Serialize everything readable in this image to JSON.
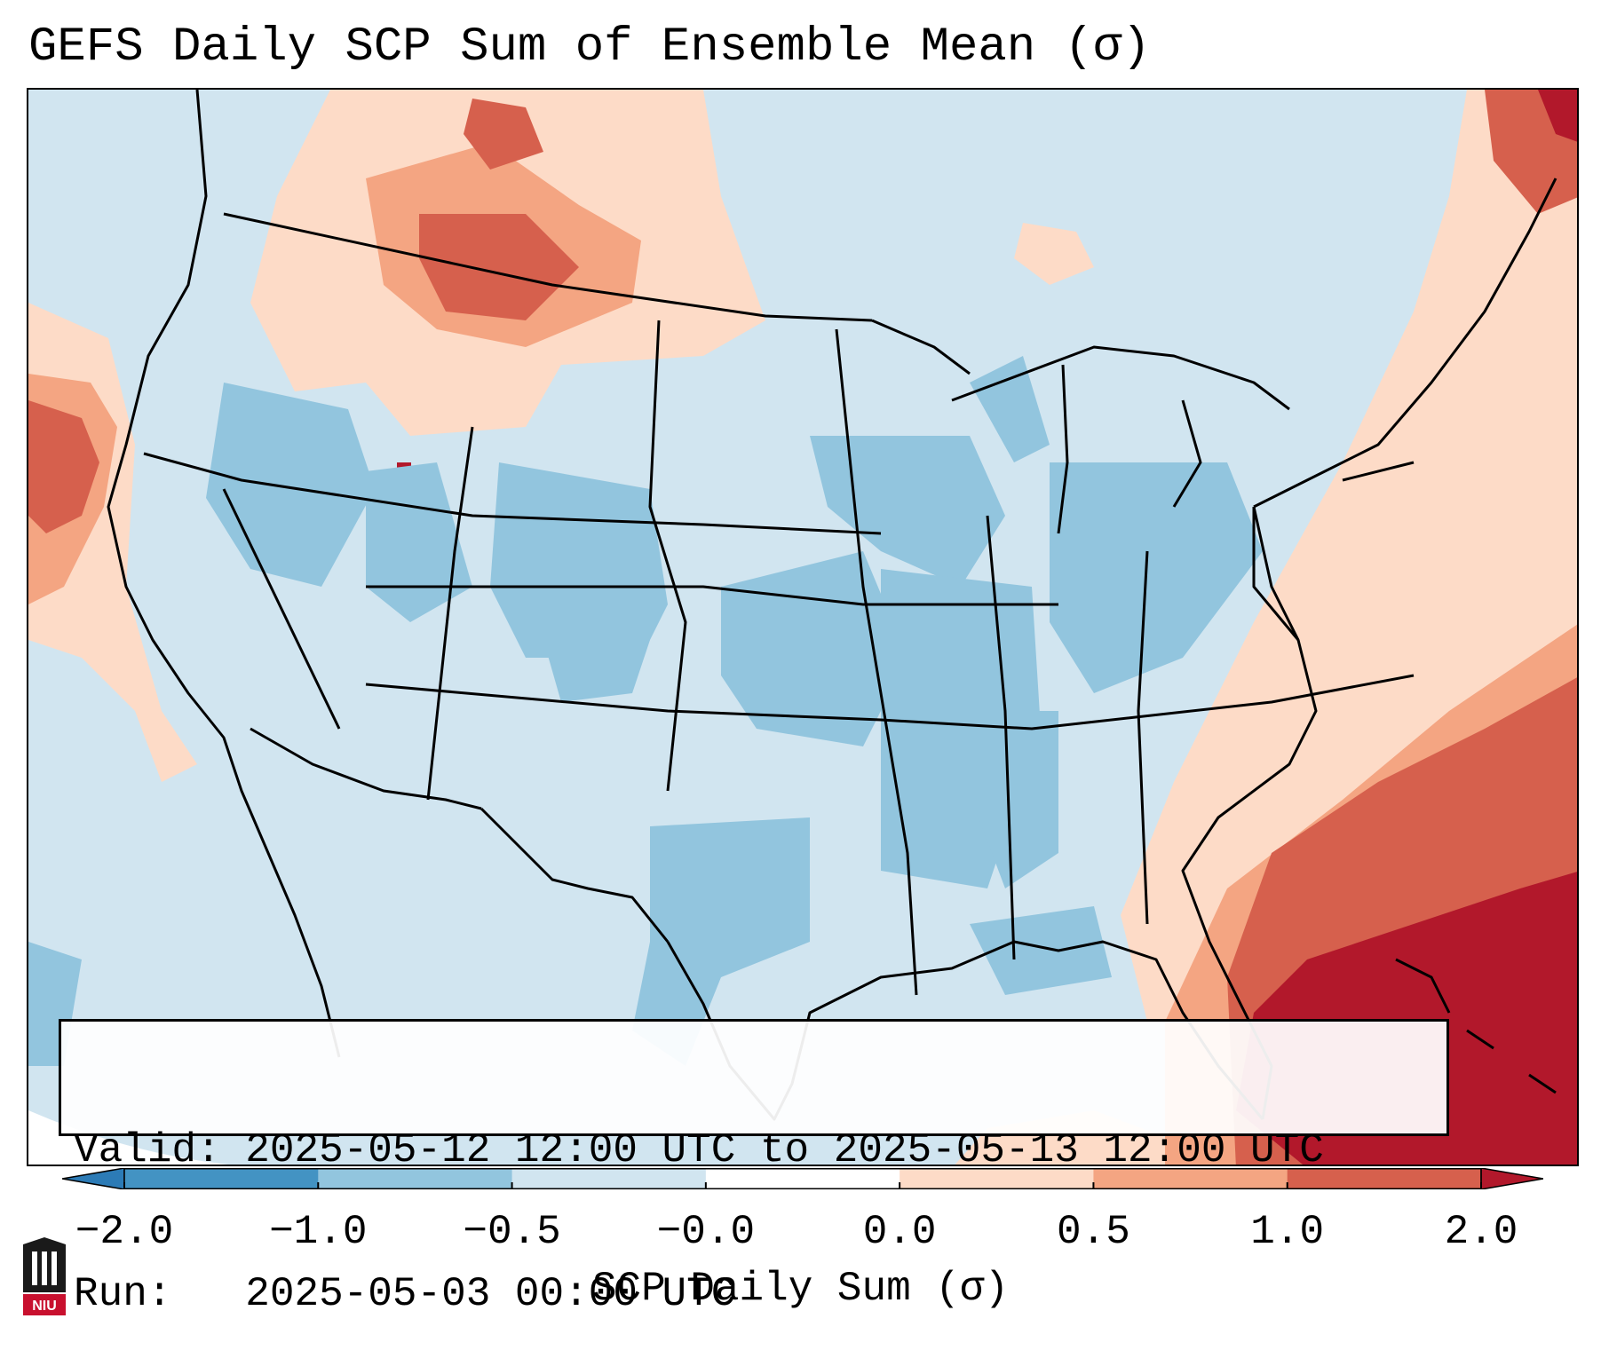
{
  "title": "GEFS Daily SCP Sum of Ensemble Mean (σ)",
  "info": {
    "valid_label": "Valid:",
    "valid_value": "2025-05-12 12:00 UTC to 2025-05-13 12:00 UTC",
    "run_label": "Run:",
    "run_value": "2025-05-03 00:00 UTC"
  },
  "colorbar": {
    "label": "SCP Daily Sum (σ)",
    "ticks": [
      "−2.0",
      "−1.0",
      "−0.5",
      "−0.0",
      "0.0",
      "0.5",
      "1.0",
      "2.0"
    ],
    "colors": [
      "#2c7bb6",
      "#4393c3",
      "#92c5de",
      "#d1e5f0",
      "#ffffff",
      "#fddbc7",
      "#f4a582",
      "#d6604d",
      "#b2182b"
    ],
    "extend": "both"
  },
  "map": {
    "region": "CONUS",
    "colors": {
      "neutral_low": "#d1e5f0",
      "low": "#92c5de",
      "high_weak": "#fddbc7",
      "high_moderate": "#f4a582",
      "high_strong": "#d6604d",
      "high_max": "#b2182b"
    }
  },
  "logo": {
    "text": "NIU",
    "icon": "university-logo-icon"
  }
}
